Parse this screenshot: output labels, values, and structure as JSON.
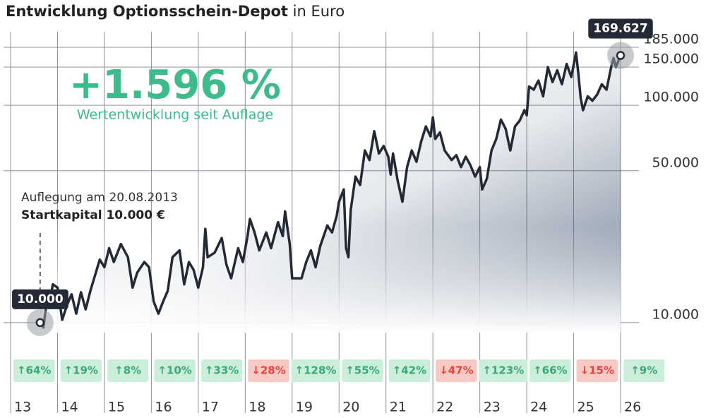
{
  "chart_data": {
    "type": "line",
    "title": "Entwicklung Optionsschein-Depot",
    "title_unit": "in Euro",
    "headline": "+1.596 %",
    "headline_caption": "Wertentwicklung seit Auflage",
    "launch_note": "Auflegung am 20.08.2013",
    "start_capital": "Startkapital 10.000 €",
    "start_label": "10.000",
    "end_label": "169.627",
    "color": "#232a36",
    "log_scale": true,
    "grid": true,
    "xlim": [
      2013,
      2026
    ],
    "xticks": [
      {
        "value": 2013,
        "label": "13"
      },
      {
        "value": 2014,
        "label": "14"
      },
      {
        "value": 2015,
        "label": "15"
      },
      {
        "value": 2016,
        "label": "16"
      },
      {
        "value": 2017,
        "label": "17"
      },
      {
        "value": 2018,
        "label": "18"
      },
      {
        "value": 2019,
        "label": "19"
      },
      {
        "value": 2020,
        "label": "20"
      },
      {
        "value": 2021,
        "label": "21"
      },
      {
        "value": 2022,
        "label": "22"
      },
      {
        "value": 2023,
        "label": "23"
      },
      {
        "value": 2024,
        "label": "24"
      },
      {
        "value": 2025,
        "label": "25"
      },
      {
        "value": 2026,
        "label": "26"
      }
    ],
    "ylim": [
      9000,
      218000
    ],
    "yticks": [
      {
        "value": 10000,
        "label": "10.000"
      },
      {
        "value": 50000,
        "label": "50.000"
      },
      {
        "value": 100000,
        "label": "100.000"
      },
      {
        "value": 150000,
        "label": "150.000"
      },
      {
        "value": 185000,
        "label": "185.000"
      }
    ],
    "x": [
      2013.63,
      2013.7,
      2013.75,
      2013.8,
      2013.85,
      2013.9,
      2014.0,
      2014.1,
      2014.2,
      2014.3,
      2014.4,
      2014.5,
      2014.6,
      2014.7,
      2014.8,
      2014.9,
      2015.0,
      2015.1,
      2015.2,
      2015.35,
      2015.5,
      2015.6,
      2015.7,
      2015.85,
      2015.95,
      2016.05,
      2016.15,
      2016.25,
      2016.35,
      2016.45,
      2016.6,
      2016.7,
      2016.8,
      2016.9,
      2017.0,
      2017.1,
      2017.15,
      2017.2,
      2017.35,
      2017.5,
      2017.6,
      2017.7,
      2017.85,
      2017.95,
      2018.05,
      2018.1,
      2018.2,
      2018.3,
      2018.45,
      2018.55,
      2018.7,
      2018.8,
      2018.85,
      2018.95,
      2019.0,
      2019.1,
      2019.2,
      2019.3,
      2019.4,
      2019.5,
      2019.6,
      2019.75,
      2019.85,
      2019.95,
      2020.0,
      2020.1,
      2020.15,
      2020.2,
      2020.25,
      2020.35,
      2020.45,
      2020.55,
      2020.65,
      2020.75,
      2020.85,
      2020.95,
      2021.05,
      2021.1,
      2021.15,
      2021.25,
      2021.35,
      2021.45,
      2021.55,
      2021.65,
      2021.75,
      2021.85,
      2021.95,
      2022.0,
      2022.05,
      2022.15,
      2022.25,
      2022.4,
      2022.5,
      2022.6,
      2022.7,
      2022.8,
      2022.9,
      2023.0,
      2023.05,
      2023.15,
      2023.25,
      2023.35,
      2023.45,
      2023.55,
      2023.65,
      2023.75,
      2023.85,
      2023.95,
      2024.0,
      2024.05,
      2024.15,
      2024.25,
      2024.35,
      2024.45,
      2024.55,
      2024.65,
      2024.75,
      2024.85,
      2024.95,
      2025.05,
      2025.1,
      2025.15,
      2025.2,
      2025.3,
      2025.4,
      2025.5,
      2025.6,
      2025.7,
      2025.8,
      2025.85,
      2025.9,
      2026.0
    ],
    "values": [
      10000,
      9500,
      11500,
      14000,
      13000,
      15000,
      14500,
      10300,
      12000,
      13500,
      11000,
      13800,
      11500,
      14000,
      16500,
      19500,
      18000,
      22000,
      19000,
      23000,
      20000,
      14500,
      17000,
      19000,
      18000,
      12500,
      11000,
      12500,
      14000,
      20000,
      21500,
      15000,
      19000,
      17500,
      14500,
      18000,
      27000,
      20000,
      21000,
      24500,
      18500,
      16000,
      22000,
      19000,
      25000,
      30000,
      26000,
      21500,
      26000,
      22000,
      29000,
      25000,
      32500,
      23000,
      16000,
      16000,
      16000,
      19000,
      21500,
      18000,
      22500,
      28000,
      26000,
      31000,
      36000,
      41000,
      22000,
      20000,
      33000,
      47000,
      43000,
      62000,
      56000,
      76000,
      60000,
      65000,
      58000,
      48000,
      60000,
      45000,
      36000,
      52000,
      62000,
      55000,
      68000,
      80000,
      72000,
      88000,
      70000,
      75000,
      62000,
      56000,
      59000,
      52000,
      58000,
      53000,
      47000,
      52000,
      41000,
      46000,
      62000,
      70000,
      86000,
      78000,
      62000,
      80000,
      85000,
      95000,
      90000,
      122000,
      118000,
      130000,
      110000,
      150000,
      128000,
      145000,
      125000,
      155000,
      135000,
      175000,
      140000,
      108000,
      95000,
      110000,
      105000,
      112000,
      125000,
      118000,
      150000,
      165000,
      150000,
      169627
    ],
    "annual_returns": {
      "values": [
        64,
        19,
        8,
        10,
        33,
        -28,
        128,
        55,
        42,
        -47,
        123,
        66,
        -15,
        9
      ],
      "value_labels": [
        "↑64%",
        "↑19%",
        "↑8%",
        "↑10%",
        "↑33%",
        "↓28%",
        "↑128%",
        "↑55%",
        "↑42%",
        "↓47%",
        "↑123%",
        "↑66%",
        "↓15%",
        "↑9%"
      ]
    }
  }
}
